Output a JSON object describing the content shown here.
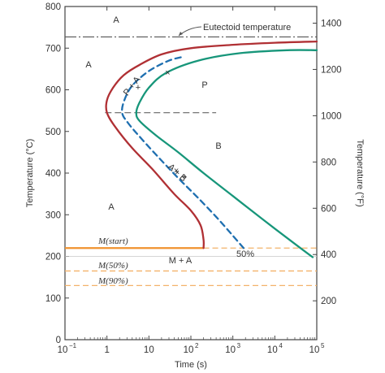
{
  "chart_data": {
    "type": "line",
    "title": "",
    "xlabel": "Time (s)",
    "ylabel": "Temperature (°C)",
    "ylabel_right": "Temperature (°F)",
    "x_scale": "log",
    "xlim": [
      0.1,
      100000
    ],
    "ylim": [
      0,
      800
    ],
    "x_ticks": [
      {
        "value": 0.1,
        "base": "10",
        "exp": "−1"
      },
      {
        "value": 1,
        "base": "1",
        "exp": ""
      },
      {
        "value": 10,
        "base": "10",
        "exp": ""
      },
      {
        "value": 100,
        "base": "10",
        "exp": "2"
      },
      {
        "value": 1000,
        "base": "10",
        "exp": "3"
      },
      {
        "value": 10000,
        "base": "10",
        "exp": "4"
      },
      {
        "value": 100000,
        "base": "10",
        "exp": "5"
      }
    ],
    "y_ticks": [
      0,
      100,
      200,
      300,
      400,
      500,
      600,
      700,
      800
    ],
    "y_ticks_right_F": [
      200,
      400,
      600,
      800,
      1000,
      1200,
      1400
    ],
    "colors": {
      "start_curve": "#b03034",
      "fifty_curve": "#1e6fb0",
      "finish_curve": "#17967a",
      "ms_line": "#f0922e",
      "m_dashed": "#f3b26a",
      "eutectoid": "#555555",
      "axis": "#444444",
      "nose_dash": "#666666"
    },
    "series": [
      {
        "name": "",
        "role": "transformation-start",
        "style": "solid",
        "points": [
          [
            200,
            220
          ],
          [
            200,
            240
          ],
          [
            170,
            275
          ],
          [
            100,
            310
          ],
          [
            40,
            350
          ],
          [
            12,
            410
          ],
          [
            4,
            460
          ],
          [
            1.6,
            510
          ],
          [
            1.0,
            545
          ],
          [
            1.0,
            575
          ],
          [
            1.4,
            605
          ],
          [
            2.5,
            635
          ],
          [
            6,
            660
          ],
          [
            20,
            685
          ],
          [
            100,
            700
          ],
          [
            1000,
            708
          ],
          [
            10000,
            713
          ],
          [
            100000,
            716
          ]
        ]
      },
      {
        "name": "",
        "role": "fifty-percent",
        "style": "dashed",
        "points": [
          [
            1800,
            220
          ],
          [
            900,
            255
          ],
          [
            400,
            295
          ],
          [
            150,
            340
          ],
          [
            60,
            380
          ],
          [
            20,
            430
          ],
          [
            7,
            480
          ],
          [
            3.2,
            520
          ],
          [
            2.3,
            545
          ],
          [
            2.6,
            575
          ],
          [
            4,
            610
          ],
          [
            10,
            645
          ],
          [
            30,
            670
          ],
          [
            70,
            680
          ]
        ]
      },
      {
        "name": "",
        "role": "transformation-finish",
        "style": "solid",
        "points": [
          [
            80000,
            198
          ],
          [
            30000,
            230
          ],
          [
            5000,
            290
          ],
          [
            1000,
            345
          ],
          [
            200,
            400
          ],
          [
            50,
            450
          ],
          [
            15,
            490
          ],
          [
            6,
            525
          ],
          [
            5,
            545
          ],
          [
            6,
            570
          ],
          [
            10,
            605
          ],
          [
            25,
            640
          ],
          [
            150,
            670
          ],
          [
            1500,
            688
          ],
          [
            20000,
            695
          ],
          [
            100000,
            695
          ]
        ]
      }
    ],
    "eutectoid_temperature": 727,
    "nose_dashed_line": {
      "y": 545,
      "x_from": 0.9,
      "x_to": 400
    },
    "ms_start": {
      "y": 220,
      "x_from": 0.1,
      "x_to": 200
    },
    "ms_start_dashed": {
      "y": 220,
      "x_from": 200,
      "x_to": 100000
    },
    "m50_dashed": {
      "y": 165
    },
    "m90_dashed": {
      "y": 130
    },
    "right_axis_thin_line": {
      "y": 200
    },
    "labels": {
      "eutectoid": "Eutectoid temperature",
      "m_start": "M(start)",
      "m_50": "M(50%)",
      "m_90": "M(90%)",
      "fifty_percent": "50%",
      "m_plus_a": "M + A",
      "a_top": "A",
      "a_left": "A",
      "a_lower": "A",
      "p_plus_a": "P + A",
      "p_region": "P",
      "a_plus_b": "A + B",
      "b_region": "B"
    }
  }
}
